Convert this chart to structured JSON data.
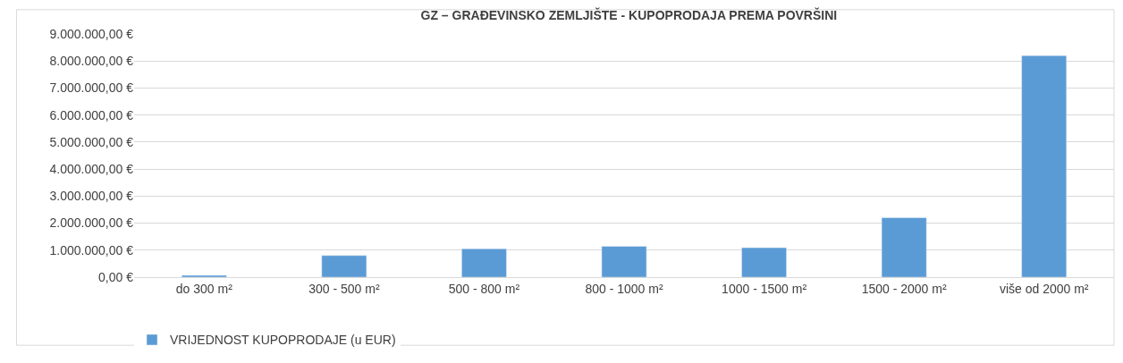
{
  "chart_data": {
    "type": "bar",
    "title": "GZ – GRAĐEVINSKO ZEMLJIŠTE - KUPOPRODAJA PREMA POVRŠINI",
    "categories": [
      "do 300 m²",
      "300 - 500 m²",
      "500 - 800 m²",
      "800 - 1000 m²",
      "1000 - 1500 m²",
      "1500 - 2000 m²",
      "više od 2000 m²"
    ],
    "series": [
      {
        "name": "VRIJEDNOST KUPOPRODAJE (u EUR)",
        "color": "#5b9bd5",
        "values": [
          70000,
          800000,
          1050000,
          1140000,
          1090000,
          2200000,
          8200000
        ]
      }
    ],
    "ylim": [
      0,
      9000000
    ],
    "yticks": [
      {
        "value": 0,
        "label": "0,00 €"
      },
      {
        "value": 1000000,
        "label": "1.000.000,00 €"
      },
      {
        "value": 2000000,
        "label": "2.000.000,00 €"
      },
      {
        "value": 3000000,
        "label": "3.000.000,00 €"
      },
      {
        "value": 4000000,
        "label": "4.000.000,00 €"
      },
      {
        "value": 5000000,
        "label": "5.000.000,00 €"
      },
      {
        "value": 6000000,
        "label": "6.000.000,00 €"
      },
      {
        "value": 7000000,
        "label": "7.000.000,00 €"
      },
      {
        "value": 8000000,
        "label": "8.000.000,00 €"
      },
      {
        "value": 9000000,
        "label": "9.000.000,00 €"
      }
    ],
    "grid": "y",
    "legend": "bottom left"
  }
}
